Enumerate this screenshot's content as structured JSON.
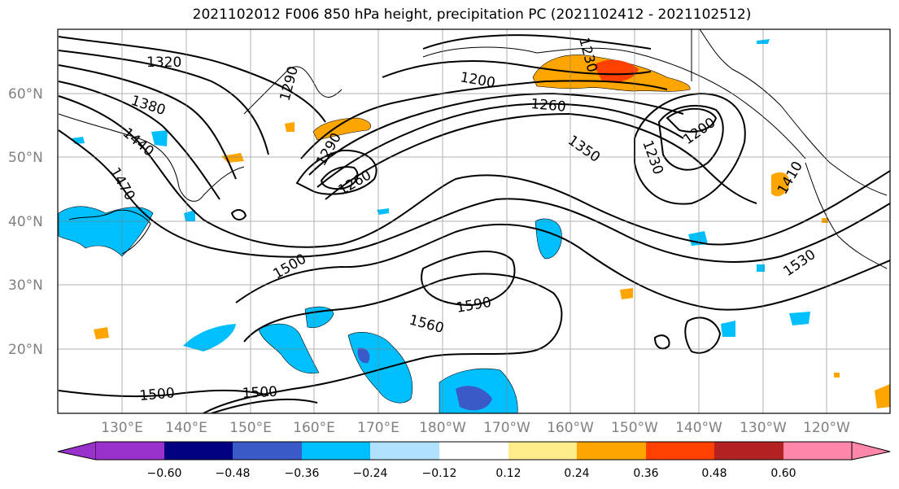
{
  "title": "2021102012 F006 850 hPa height, precipitation PC (2021102412 - 2021102512)",
  "lat_labels": [
    "60°N",
    "50°N",
    "40°N",
    "30°N",
    "20°N"
  ],
  "lon_labels": [
    "130°E",
    "140°E",
    "150°E",
    "160°E",
    "170°E",
    "180°W",
    "170°W",
    "160°W",
    "150°W",
    "140°W",
    "130°W",
    "120°W"
  ],
  "contour_labels": [
    "1320",
    "1380",
    "1440",
    "1470",
    "1290",
    "1290",
    "1260",
    "1200",
    "1230",
    "1260",
    "1350",
    "1230",
    "1200",
    "1410",
    "1500",
    "1530",
    "1590",
    "1560",
    "1500",
    "1500"
  ],
  "colorbar": {
    "ticks": [
      "−0.60",
      "−0.48",
      "−0.36",
      "−0.24",
      "−0.12",
      "0.12",
      "0.24",
      "0.36",
      "0.48",
      "0.60"
    ],
    "colors": [
      "#9932cc",
      "#000080",
      "#3a5bc7",
      "#00bfff",
      "#b0e2ff",
      "#ffffff",
      "#ffec8b",
      "#ffa500",
      "#ff4000",
      "#b22222",
      "#ff88aa"
    ]
  }
}
